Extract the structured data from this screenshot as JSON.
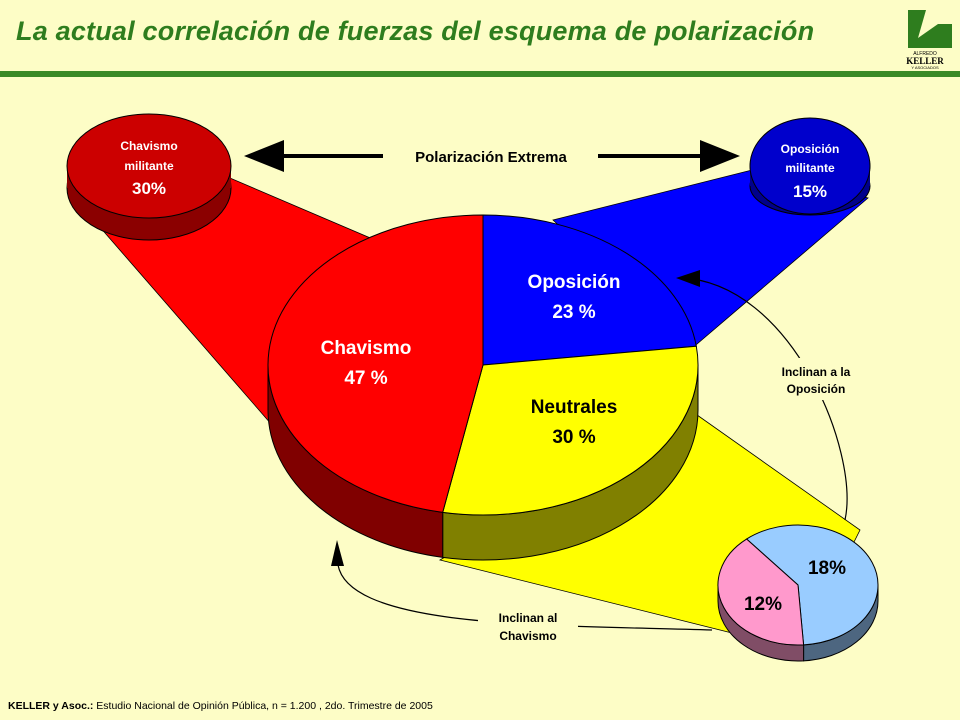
{
  "title": "La actual correlación de fuerzas del esquema de polarización",
  "logo": {
    "top_text": "ALFREDO",
    "name": "KELLER",
    "bottom_text": "Y ASOCIADOS"
  },
  "source": {
    "author": "KELLER y Asoc.:",
    "text": "Estudio Nacional de Opinión Pública, n = 1.200 , 2do. Trimestre de 2005"
  },
  "polarization_label": "Polarización Extrema",
  "militant_left": {
    "line1": "Chavismo",
    "line2": "militante",
    "value": "30%"
  },
  "militant_right": {
    "line1": "Oposición",
    "line2": "militante",
    "value": "15%"
  },
  "lean_opposition_label": {
    "line1": "Inclinan a la",
    "line2": "Oposición"
  },
  "lean_chavismo_label": {
    "line1": "Inclinan al",
    "line2": "Chavismo"
  },
  "colors": {
    "chavismo": "#ff0000",
    "oposicion": "#0000ff",
    "neutrales": "#ffff00",
    "lean_opp": "#99ccff",
    "lean_chav": "#ff99cc",
    "title": "#2e7d1e",
    "background": "#fdfdc6"
  },
  "chart_data": [
    {
      "type": "pie",
      "slices": [
        {
          "label": "Chavismo",
          "value": 47,
          "value_label": "47 %"
        },
        {
          "label": "Oposición",
          "value": 23,
          "value_label": "23 %"
        },
        {
          "label": "Neutrales",
          "value": 30,
          "value_label": "30 %"
        }
      ]
    },
    {
      "type": "pie",
      "slices": [
        {
          "label": "",
          "value": 18,
          "value_label": "18%"
        },
        {
          "label": "",
          "value": 12,
          "value_label": "12%"
        }
      ]
    }
  ]
}
